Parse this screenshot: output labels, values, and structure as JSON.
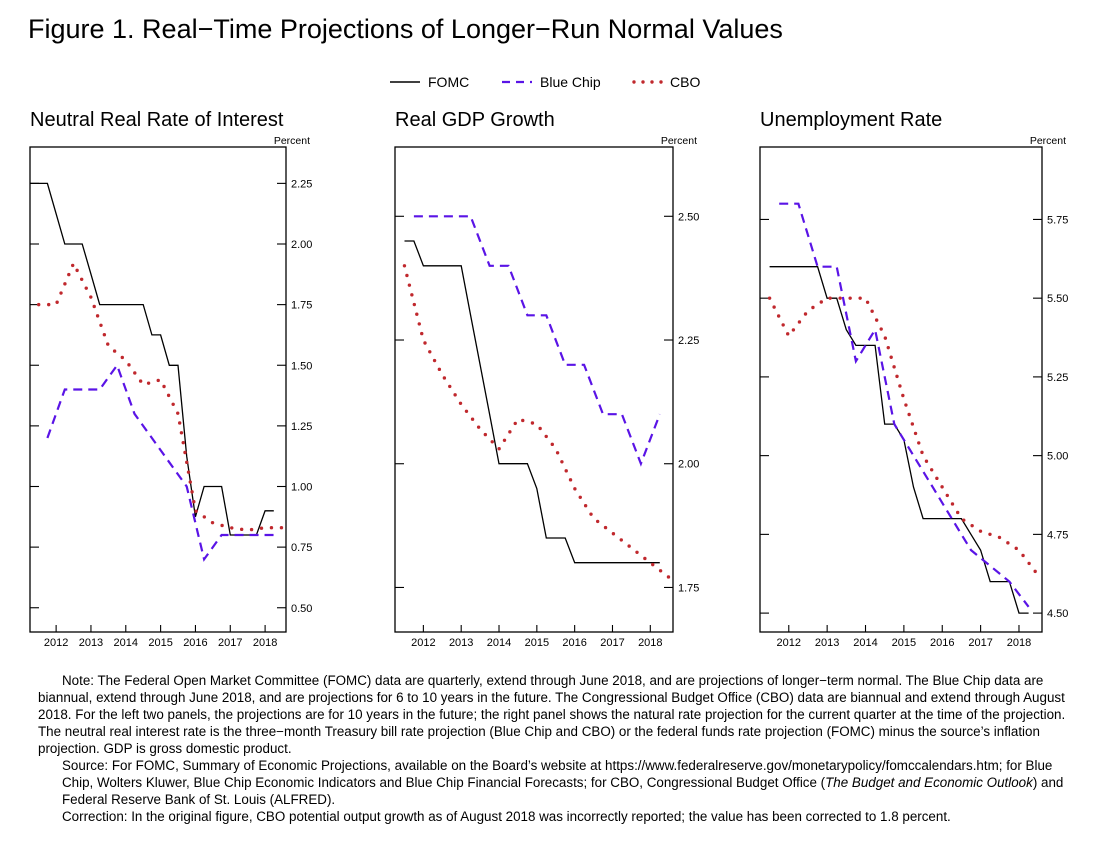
{
  "title": "Figure 1.  Real−Time Projections of Longer−Run Normal Values",
  "legend": [
    {
      "label": "FOMC",
      "style": "solid",
      "color": "#000000"
    },
    {
      "label": "Blue Chip",
      "style": "dashed",
      "color": "#5a14e6"
    },
    {
      "label": "CBO",
      "style": "dotted",
      "color": "#c0282d"
    }
  ],
  "chart_data": [
    {
      "type": "line",
      "title": "Neutral Real Rate of Interest",
      "ylabel": "Percent",
      "ylim": [
        0.4,
        2.4
      ],
      "yticks": [
        0.5,
        0.75,
        1.0,
        1.25,
        1.5,
        1.75,
        2.0,
        2.25
      ],
      "ytick_labels": [
        "0.50",
        "0.75",
        "1.00",
        "1.25",
        "1.50",
        "1.75",
        "2.00",
        "2.25"
      ],
      "xlim": [
        2011.25,
        2018.6
      ],
      "xticks": [
        2012,
        2013,
        2014,
        2015,
        2016,
        2017,
        2018
      ],
      "xtick_labels": [
        "2012",
        "2013",
        "2014",
        "2015",
        "2016",
        "2017",
        "2018"
      ],
      "series": [
        {
          "name": "FOMC",
          "x": [
            2011.25,
            2011.5,
            2011.75,
            2012,
            2012.25,
            2012.5,
            2012.75,
            2013,
            2013.25,
            2013.5,
            2013.75,
            2014,
            2014.25,
            2014.5,
            2014.75,
            2015,
            2015.25,
            2015.5,
            2015.75,
            2016,
            2016.25,
            2016.5,
            2016.75,
            2017,
            2017.25,
            2017.5,
            2017.75,
            2018,
            2018.25
          ],
          "y": [
            2.25,
            2.25,
            2.25,
            2.125,
            2.0,
            2.0,
            2.0,
            1.875,
            1.75,
            1.75,
            1.75,
            1.75,
            1.75,
            1.75,
            1.625,
            1.625,
            1.5,
            1.5,
            1.125,
            0.875,
            1.0,
            1.0,
            1.0,
            0.8,
            0.8,
            0.8,
            0.8,
            0.9,
            0.9
          ]
        },
        {
          "name": "Blue Chip",
          "x": [
            2011.75,
            2012.25,
            2012.75,
            2013.25,
            2013.75,
            2014.25,
            2014.75,
            2015.25,
            2015.75,
            2016.25,
            2016.75,
            2017.25,
            2017.75,
            2018.25
          ],
          "y": [
            1.2,
            1.4,
            1.4,
            1.4,
            1.5,
            1.3,
            1.2,
            1.1,
            1.0,
            0.7,
            0.8,
            0.8,
            0.8,
            0.8
          ]
        },
        {
          "name": "CBO",
          "x": [
            2011.5,
            2012.0,
            2012.5,
            2013.0,
            2013.5,
            2014.0,
            2014.5,
            2015.0,
            2015.5,
            2016.0,
            2016.5,
            2017.0,
            2017.5,
            2018.0,
            2018.5
          ],
          "y": [
            1.75,
            1.75,
            1.92,
            1.78,
            1.58,
            1.52,
            1.42,
            1.44,
            1.3,
            0.9,
            0.85,
            0.83,
            0.82,
            0.83,
            0.83
          ]
        }
      ]
    },
    {
      "type": "line",
      "title": "Real GDP Growth",
      "ylabel": "Percent",
      "ylim": [
        1.66,
        2.64
      ],
      "yticks": [
        1.75,
        2.0,
        2.25,
        2.5
      ],
      "ytick_labels": [
        "1.75",
        "2.00",
        "2.25",
        "2.50"
      ],
      "xlim": [
        2011.25,
        2018.6
      ],
      "xticks": [
        2012,
        2013,
        2014,
        2015,
        2016,
        2017,
        2018
      ],
      "xtick_labels": [
        "2012",
        "2013",
        "2014",
        "2015",
        "2016",
        "2017",
        "2018"
      ],
      "series": [
        {
          "name": "FOMC",
          "x": [
            2011.5,
            2011.75,
            2012,
            2012.25,
            2012.5,
            2012.75,
            2013,
            2013.25,
            2013.5,
            2013.75,
            2014,
            2014.25,
            2014.5,
            2014.75,
            2015,
            2015.25,
            2015.5,
            2015.75,
            2016,
            2016.25,
            2016.5,
            2016.75,
            2017,
            2017.25,
            2017.5,
            2017.75,
            2018,
            2018.25
          ],
          "y": [
            2.45,
            2.45,
            2.4,
            2.4,
            2.4,
            2.4,
            2.4,
            2.3,
            2.2,
            2.1,
            2.0,
            2.0,
            2.0,
            2.0,
            1.95,
            1.85,
            1.85,
            1.85,
            1.8,
            1.8,
            1.8,
            1.8,
            1.8,
            1.8,
            1.8,
            1.8,
            1.8,
            1.8
          ]
        },
        {
          "name": "Blue Chip",
          "x": [
            2011.75,
            2012.25,
            2012.75,
            2013.25,
            2013.75,
            2014.25,
            2014.75,
            2015.25,
            2015.75,
            2016.25,
            2016.75,
            2017.25,
            2017.75,
            2018.25
          ],
          "y": [
            2.5,
            2.5,
            2.5,
            2.5,
            2.4,
            2.4,
            2.3,
            2.3,
            2.2,
            2.2,
            2.1,
            2.1,
            2.0,
            2.1
          ]
        },
        {
          "name": "CBO",
          "x": [
            2011.5,
            2012.0,
            2012.5,
            2013.0,
            2013.5,
            2014.0,
            2014.5,
            2015.0,
            2015.5,
            2016.0,
            2016.5,
            2017.0,
            2017.5,
            2018.0,
            2018.5
          ],
          "y": [
            2.4,
            2.25,
            2.18,
            2.12,
            2.07,
            2.03,
            2.09,
            2.08,
            2.03,
            1.95,
            1.89,
            1.86,
            1.83,
            1.8,
            1.77
          ]
        }
      ]
    },
    {
      "type": "line",
      "title": "Unemployment Rate",
      "ylabel": "Percent",
      "ylim": [
        4.44,
        5.98
      ],
      "yticks": [
        4.5,
        4.75,
        5.0,
        5.25,
        5.5,
        5.75
      ],
      "ytick_labels": [
        "4.50",
        "4.75",
        "5.00",
        "5.25",
        "5.50",
        "5.75"
      ],
      "xlim": [
        2011.25,
        2018.6
      ],
      "xticks": [
        2012,
        2013,
        2014,
        2015,
        2016,
        2017,
        2018
      ],
      "xtick_labels": [
        "2012",
        "2013",
        "2014",
        "2015",
        "2016",
        "2017",
        "2018"
      ],
      "series": [
        {
          "name": "FOMC",
          "x": [
            2011.5,
            2011.75,
            2012,
            2012.25,
            2012.5,
            2012.75,
            2013,
            2013.25,
            2013.5,
            2013.75,
            2014,
            2014.25,
            2014.5,
            2014.75,
            2015,
            2015.25,
            2015.5,
            2015.75,
            2016,
            2016.25,
            2016.5,
            2016.75,
            2017,
            2017.25,
            2017.5,
            2017.75,
            2018,
            2018.25
          ],
          "y": [
            5.6,
            5.6,
            5.6,
            5.6,
            5.6,
            5.6,
            5.5,
            5.5,
            5.4,
            5.35,
            5.35,
            5.35,
            5.1,
            5.1,
            5.05,
            4.9,
            4.8,
            4.8,
            4.8,
            4.8,
            4.8,
            4.75,
            4.7,
            4.6,
            4.6,
            4.6,
            4.5,
            4.5
          ]
        },
        {
          "name": "Blue Chip",
          "x": [
            2011.75,
            2012.25,
            2012.75,
            2013.25,
            2013.75,
            2014.25,
            2014.75,
            2015.25,
            2015.75,
            2016.25,
            2016.75,
            2017.25,
            2017.75,
            2018.25
          ],
          "y": [
            5.8,
            5.8,
            5.6,
            5.6,
            5.3,
            5.4,
            5.1,
            5.0,
            4.9,
            4.8,
            4.7,
            4.65,
            4.6,
            4.52
          ]
        },
        {
          "name": "CBO",
          "x": [
            2011.5,
            2012.0,
            2012.5,
            2013.0,
            2013.5,
            2014.0,
            2014.5,
            2015.0,
            2015.5,
            2016.0,
            2016.5,
            2017.0,
            2017.5,
            2018.0,
            2018.5
          ],
          "y": [
            5.5,
            5.38,
            5.46,
            5.5,
            5.5,
            5.5,
            5.38,
            5.18,
            5.0,
            4.9,
            4.8,
            4.76,
            4.74,
            4.7,
            4.62
          ]
        }
      ]
    }
  ],
  "notes": {
    "note": "Note: The Federal Open Market Committee (FOMC) data are quarterly, extend through June 2018, and are projections of longer−term normal. The Blue Chip data are biannual, extend through June 2018, and are projections for 6 to 10 years in the future.  The Congressional Budget Office (CBO) data are biannual and extend through August 2018. For the left two panels, the projections are for 10 years in the future; the right panel shows the natural rate projection for the current quarter at the time of the projection.  The neutral real interest rate is the three−month Treasury bill rate projection (Blue Chip and CBO) or the federal funds rate projection (FOMC) minus the source’s inflation projection. GDP is gross domestic product.",
    "source_1": "Source:  For FOMC, Summary of Economic Projections, available on the Board’s website at https://www.federalreserve.gov/monetarypolicy/fomccalendars.htm; for Blue Chip, Wolters Kluwer, Blue Chip Economic Indicators and Blue Chip Financial Forecasts; for CBO, Congressional Budget Office (",
    "source_italic": "The Budget and Economic Outlook",
    "source_2": ") and Federal Reserve Bank of St. Louis (ALFRED).",
    "correction": "Correction: In the original figure, CBO potential output growth as of August 2018 was incorrectly reported; the value has been corrected to 1.8 percent."
  }
}
